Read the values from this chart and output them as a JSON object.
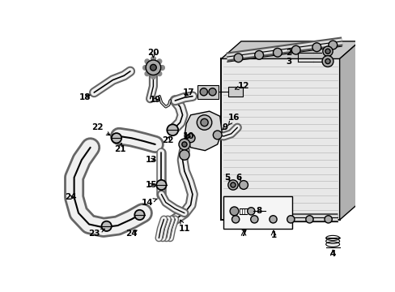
{
  "bg_color": "#ffffff",
  "lc": "#000000",
  "figsize": [
    4.89,
    3.6
  ],
  "dpi": 100,
  "rad_fill": "#e8e8e8",
  "hose_outer": "#888888",
  "hose_inner": "#f0f0f0",
  "clamp_fill": "#cccccc",
  "part_fill": "#d8d8d8"
}
